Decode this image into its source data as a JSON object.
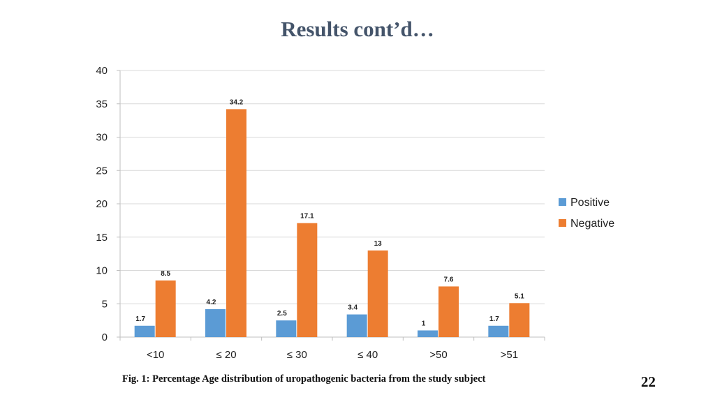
{
  "slide": {
    "title": "Results cont’d…",
    "caption_prefix": "Fig. 1: P",
    "caption_rest": "ercentage Age distribution of uropathogenic bacteria from the study subject",
    "page_number": "22"
  },
  "chart_data": {
    "type": "bar",
    "title": "",
    "xlabel": "",
    "ylabel": "",
    "categories": [
      "<10",
      "≤ 20",
      "≤ 30",
      "≤ 40",
      ">50",
      ">51"
    ],
    "series": [
      {
        "name": "Positive",
        "color": "#5b9bd5",
        "values": [
          1.7,
          4.2,
          2.5,
          3.4,
          1,
          1.7
        ]
      },
      {
        "name": "Negative",
        "color": "#ed7d31",
        "values": [
          8.5,
          34.2,
          17.1,
          13,
          7.6,
          5.1
        ]
      }
    ],
    "ylim": [
      0,
      40
    ],
    "yticks": [
      0,
      5,
      10,
      15,
      20,
      25,
      30,
      35,
      40
    ],
    "grid": true,
    "legend": "right",
    "data_labels": true
  }
}
